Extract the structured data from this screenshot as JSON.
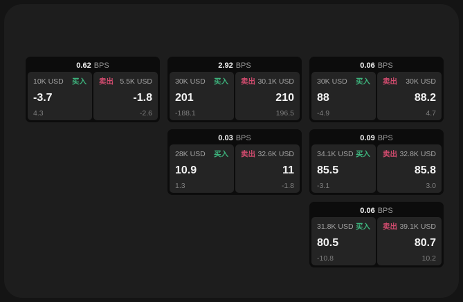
{
  "labels": {
    "bps_suffix": "BPS",
    "buy": "买入",
    "sell": "卖出"
  },
  "colors": {
    "buy_green": "#3db47d",
    "sell_red": "#d14b6e",
    "panel_bg": "#1d1d1d",
    "card_bg": "#0c0c0c",
    "subcard_bg": "#242424"
  },
  "cards": [
    {
      "bps": "0.62",
      "buy": {
        "amount": "10K USD",
        "value": "-3.7",
        "change": "4.3"
      },
      "sell": {
        "amount": "5.5K USD",
        "value": "-1.8",
        "change": "-2.6"
      }
    },
    {
      "bps": "2.92",
      "buy": {
        "amount": "30K USD",
        "value": "201",
        "change": "-188.1"
      },
      "sell": {
        "amount": "30.1K USD",
        "value": "210",
        "change": "196.5"
      }
    },
    {
      "bps": "0.06",
      "buy": {
        "amount": "30K USD",
        "value": "88",
        "change": "-4.9"
      },
      "sell": {
        "amount": "30K USD",
        "value": "88.2",
        "change": "4.7"
      }
    },
    {
      "bps": "0.03",
      "buy": {
        "amount": "28K USD",
        "value": "10.9",
        "change": "1.3"
      },
      "sell": {
        "amount": "32.6K USD",
        "value": "11",
        "change": "-1.8"
      }
    },
    {
      "bps": "0.09",
      "buy": {
        "amount": "34.1K USD",
        "value": "85.5",
        "change": "-3.1"
      },
      "sell": {
        "amount": "32.8K USD",
        "value": "85.8",
        "change": "3.0"
      }
    },
    {
      "bps": "0.06",
      "buy": {
        "amount": "31.8K USD",
        "value": "80.5",
        "change": "-10.8"
      },
      "sell": {
        "amount": "39.1K USD",
        "value": "80.7",
        "change": "10.2"
      }
    }
  ]
}
